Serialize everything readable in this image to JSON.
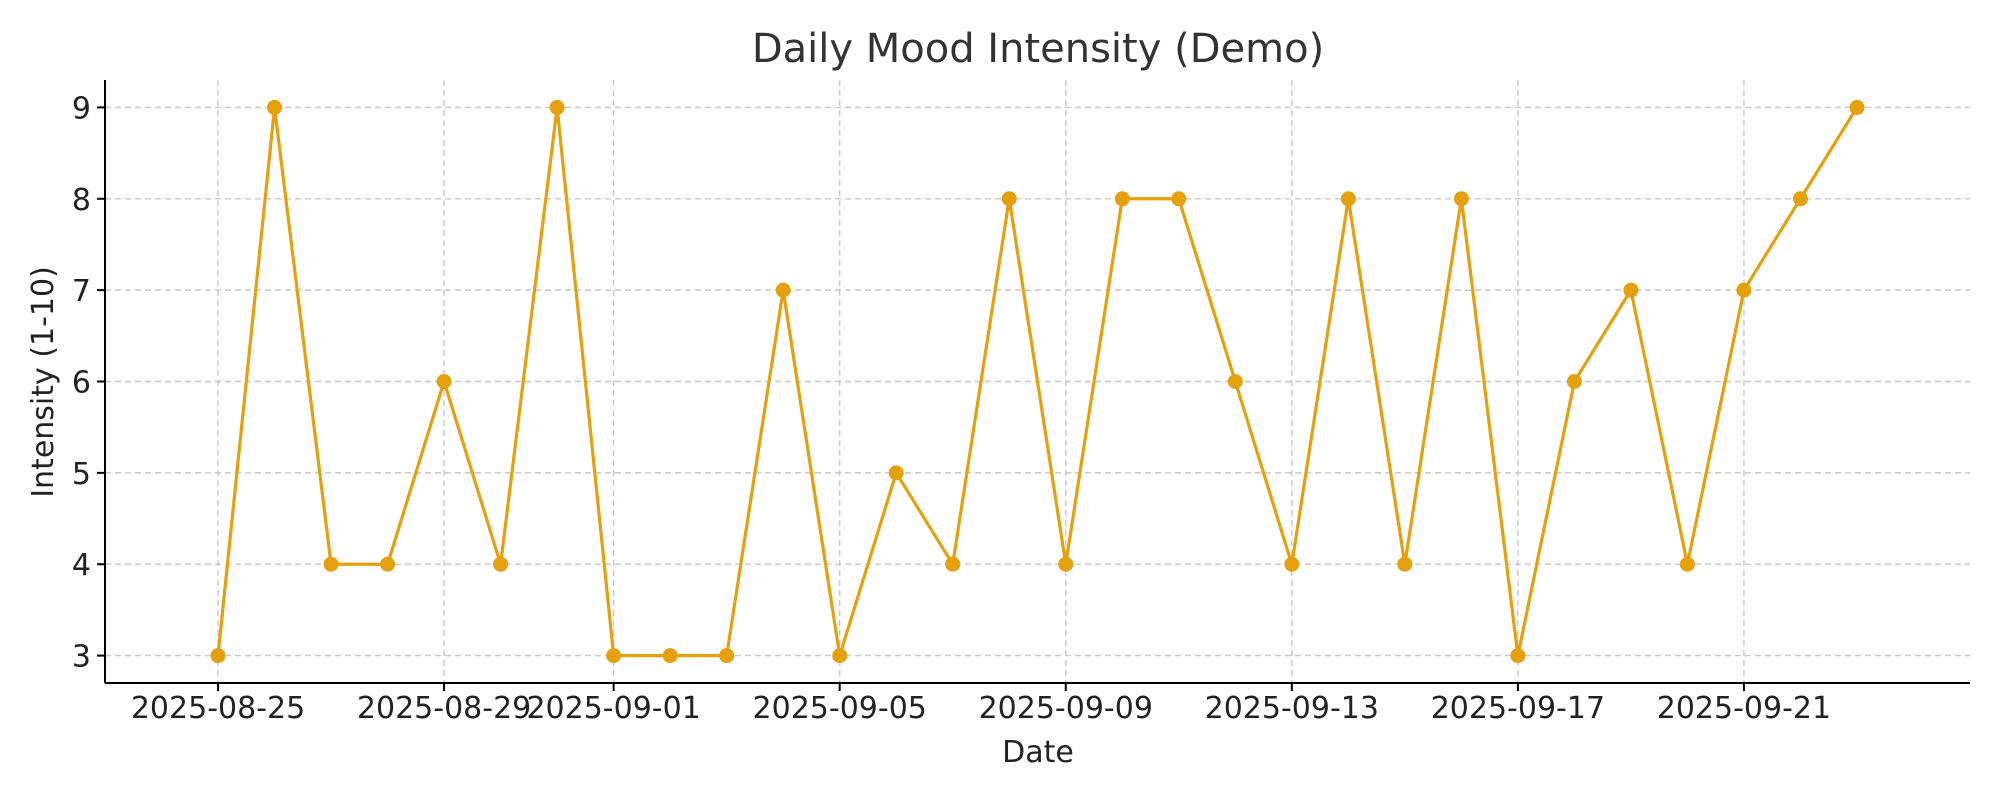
{
  "chart_data": {
    "type": "line",
    "title": "Daily Mood Intensity (Demo)",
    "xlabel": "Date",
    "ylabel": "Intensity (1-10)",
    "xlim": [
      "2025-08-23",
      "2025-09-25"
    ],
    "ylim": [
      2.7,
      9.3
    ],
    "yticks": [
      3,
      4,
      5,
      6,
      7,
      8,
      9
    ],
    "xticks": [
      "2025-08-25",
      "2025-08-29",
      "2025-09-01",
      "2025-09-05",
      "2025-09-09",
      "2025-09-13",
      "2025-09-17",
      "2025-09-21"
    ],
    "grid": true,
    "series": [
      {
        "color": "#e5a00d",
        "marker": "circle",
        "x": [
          "2025-08-25",
          "2025-08-26",
          "2025-08-27",
          "2025-08-28",
          "2025-08-29",
          "2025-08-30",
          "2025-08-31",
          "2025-09-01",
          "2025-09-02",
          "2025-09-03",
          "2025-09-04",
          "2025-09-05",
          "2025-09-06",
          "2025-09-07",
          "2025-09-08",
          "2025-09-09",
          "2025-09-10",
          "2025-09-11",
          "2025-09-12",
          "2025-09-13",
          "2025-09-14",
          "2025-09-15",
          "2025-09-16",
          "2025-09-17",
          "2025-09-18",
          "2025-09-19",
          "2025-09-20",
          "2025-09-21",
          "2025-09-22",
          "2025-09-23"
        ],
        "y": [
          3,
          9,
          4,
          4,
          6,
          4,
          9,
          3,
          3,
          3,
          7,
          3,
          5,
          4,
          8,
          4,
          8,
          8,
          6,
          4,
          8,
          4,
          8,
          3,
          6,
          7,
          4,
          7,
          8,
          9
        ]
      }
    ]
  }
}
